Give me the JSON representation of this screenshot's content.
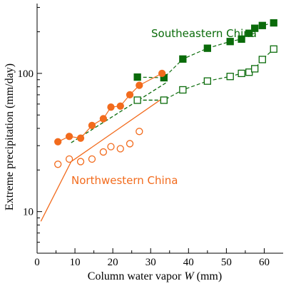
{
  "chart_data": {
    "type": "scatter",
    "xlabel": "Column water vapor W (mm)",
    "ylabel": "Extreme precipitation (mm/day)",
    "xlim": [
      0,
      65
    ],
    "ylim": [
      5,
      320
    ],
    "yscale": "log",
    "x_ticks": [
      0,
      10,
      20,
      30,
      40,
      50,
      60
    ],
    "y_ticks": [
      10,
      100
    ],
    "grid": false,
    "legend": "none",
    "colors": {
      "southeastern": "#0a6b0a",
      "northwestern": "#f26b1d"
    },
    "annotations": [
      {
        "text": "Southeastern China",
        "color": "#0a6b0a"
      },
      {
        "text": "Northwestern China",
        "color": "#f26b1d"
      }
    ],
    "series": [
      {
        "name": "Southeastern China",
        "marker": "square-filled",
        "color": "#0a6b0a",
        "line": "dashed",
        "x": [
          26.5,
          33.5,
          38.5,
          45,
          51,
          54,
          56,
          57.5,
          59.5,
          62.5
        ],
        "y": [
          94,
          93,
          127,
          152,
          170,
          177,
          195,
          212,
          222,
          232
        ]
      },
      {
        "name": "",
        "marker": "square-open",
        "color": "#0a6b0a",
        "line": "dashed",
        "x": [
          26.5,
          33.5,
          38.5,
          45,
          51,
          54,
          56,
          57.5,
          59.5,
          62.5
        ],
        "y": [
          64,
          64,
          76,
          88,
          95,
          100,
          102,
          108,
          126,
          150
        ]
      },
      {
        "name": "Northwestern China",
        "marker": "circle-filled",
        "color": "#f26b1d",
        "line": "solid",
        "x": [
          5.5,
          8.5,
          11.5,
          14.5,
          17.5,
          19.5,
          22,
          24.5,
          27,
          33
        ],
        "y": [
          32,
          35,
          34,
          42,
          47,
          57,
          58,
          70,
          82,
          100
        ]
      },
      {
        "name": "",
        "marker": "circle-open",
        "color": "#f26b1d",
        "line": "none",
        "x": [
          5.5,
          8.5,
          11.5,
          14.5,
          17.5,
          19.5,
          22,
          24.5,
          27
        ],
        "y": [
          22,
          24,
          23,
          24,
          27,
          29.5,
          28.5,
          31,
          38
        ]
      }
    ],
    "reference_lines": [
      {
        "color": "#0a6b0a",
        "style": "dashed",
        "x": [
          9,
          34.5
        ],
        "y": [
          31.5,
          87
        ]
      },
      {
        "color": "#0a6b0a",
        "style": "dashed",
        "x": [
          26.5,
          33.5
        ],
        "y": [
          64,
          64
        ]
      },
      {
        "color": "#f26b1d",
        "style": "solid",
        "x": [
          1,
          9,
          33.5
        ],
        "y": [
          8.5,
          23,
          67
        ]
      }
    ]
  }
}
